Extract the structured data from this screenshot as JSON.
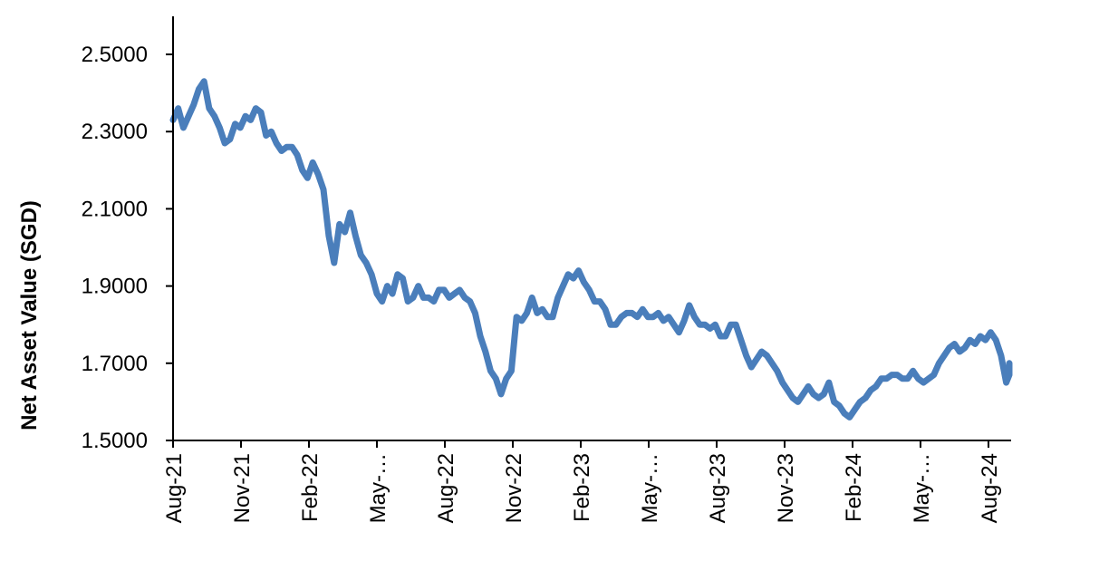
{
  "chart_data": {
    "type": "line",
    "title": "",
    "xlabel": "",
    "ylabel": "Net Asset Value (SGD)",
    "ylim": [
      1.5,
      2.6
    ],
    "y_ticks": [
      "1.5000",
      "1.7000",
      "1.9000",
      "2.1000",
      "2.3000",
      "2.5000"
    ],
    "x_ticks": [
      "Aug-21",
      "Nov-21",
      "Feb-22",
      "May-…",
      "Aug-22",
      "Nov-22",
      "Feb-23",
      "May-…",
      "Aug-23",
      "Nov-23",
      "Feb-24",
      "May-…",
      "Aug-24"
    ],
    "grid": false,
    "legend": "none",
    "line_color": "#4a7ebb",
    "series": [
      {
        "x": [
          "2021-08-01",
          "2021-08-08",
          "2021-08-15",
          "2021-08-22",
          "2021-08-29",
          "2021-09-05",
          "2021-09-12",
          "2021-09-19",
          "2021-09-26",
          "2021-10-03",
          "2021-10-10",
          "2021-10-17",
          "2021-10-24",
          "2021-10-31",
          "2021-11-07",
          "2021-11-14",
          "2021-11-21",
          "2021-11-28",
          "2021-12-05",
          "2021-12-12",
          "2021-12-19",
          "2021-12-26",
          "2022-01-02",
          "2022-01-09",
          "2022-01-16",
          "2022-01-23",
          "2022-01-30",
          "2022-02-06",
          "2022-02-13",
          "2022-02-20",
          "2022-02-27",
          "2022-03-06",
          "2022-03-13",
          "2022-03-20",
          "2022-03-27",
          "2022-04-03",
          "2022-04-10",
          "2022-04-17",
          "2022-04-24",
          "2022-05-01",
          "2022-05-08",
          "2022-05-15",
          "2022-05-22",
          "2022-05-29",
          "2022-06-05",
          "2022-06-12",
          "2022-06-19",
          "2022-06-26",
          "2022-07-03",
          "2022-07-10",
          "2022-07-17",
          "2022-07-24",
          "2022-07-31",
          "2022-08-07",
          "2022-08-14",
          "2022-08-21",
          "2022-08-28",
          "2022-09-04",
          "2022-09-11",
          "2022-09-18",
          "2022-09-25",
          "2022-10-02",
          "2022-10-09",
          "2022-10-16",
          "2022-10-23",
          "2022-10-30",
          "2022-11-06",
          "2022-11-13",
          "2022-11-20",
          "2022-11-27",
          "2022-12-04",
          "2022-12-11",
          "2022-12-18",
          "2022-12-25",
          "2023-01-01",
          "2023-01-08",
          "2023-01-15",
          "2023-01-22",
          "2023-01-29",
          "2023-02-05",
          "2023-02-12",
          "2023-02-19",
          "2023-02-26",
          "2023-03-05",
          "2023-03-12",
          "2023-03-19",
          "2023-03-26",
          "2023-04-02",
          "2023-04-09",
          "2023-04-16",
          "2023-04-23",
          "2023-04-30",
          "2023-05-07",
          "2023-05-14",
          "2023-05-21",
          "2023-05-28",
          "2023-06-04",
          "2023-06-11",
          "2023-06-18",
          "2023-06-25",
          "2023-07-02",
          "2023-07-09",
          "2023-07-16",
          "2023-07-23",
          "2023-07-30",
          "2023-08-06",
          "2023-08-13",
          "2023-08-20",
          "2023-08-27",
          "2023-09-03",
          "2023-09-10",
          "2023-09-17",
          "2023-09-24",
          "2023-10-01",
          "2023-10-08",
          "2023-10-15",
          "2023-10-22",
          "2023-10-29",
          "2023-11-05",
          "2023-11-12",
          "2023-11-19",
          "2023-11-26",
          "2023-12-03",
          "2023-12-10",
          "2023-12-17",
          "2023-12-24",
          "2023-12-31",
          "2024-01-07",
          "2024-01-14",
          "2024-01-21",
          "2024-01-28",
          "2024-02-04",
          "2024-02-11",
          "2024-02-18",
          "2024-02-25",
          "2024-03-03",
          "2024-03-10",
          "2024-03-17",
          "2024-03-24",
          "2024-03-31",
          "2024-04-07",
          "2024-04-14",
          "2024-04-21",
          "2024-04-28",
          "2024-05-05",
          "2024-05-12",
          "2024-05-19",
          "2024-05-26",
          "2024-06-02",
          "2024-06-09",
          "2024-06-16",
          "2024-06-23",
          "2024-06-30",
          "2024-07-07",
          "2024-07-14",
          "2024-07-21",
          "2024-07-28",
          "2024-08-04",
          "2024-08-11",
          "2024-08-18",
          "2024-08-25",
          "2024-09-01",
          "2024-09-08",
          "2024-09-15"
        ],
        "values": [
          2.33,
          2.36,
          2.31,
          2.34,
          2.37,
          2.41,
          2.43,
          2.36,
          2.34,
          2.31,
          2.27,
          2.28,
          2.32,
          2.31,
          2.34,
          2.33,
          2.36,
          2.35,
          2.29,
          2.3,
          2.27,
          2.25,
          2.26,
          2.26,
          2.24,
          2.2,
          2.18,
          2.22,
          2.19,
          2.15,
          2.03,
          1.96,
          2.06,
          2.04,
          2.09,
          2.03,
          1.98,
          1.96,
          1.93,
          1.88,
          1.86,
          1.9,
          1.88,
          1.93,
          1.92,
          1.86,
          1.87,
          1.9,
          1.87,
          1.87,
          1.86,
          1.89,
          1.89,
          1.87,
          1.88,
          1.89,
          1.87,
          1.86,
          1.83,
          1.77,
          1.73,
          1.68,
          1.66,
          1.62,
          1.66,
          1.68,
          1.82,
          1.81,
          1.83,
          1.87,
          1.83,
          1.84,
          1.82,
          1.82,
          1.87,
          1.9,
          1.93,
          1.92,
          1.94,
          1.91,
          1.89,
          1.86,
          1.86,
          1.84,
          1.8,
          1.8,
          1.82,
          1.83,
          1.83,
          1.82,
          1.84,
          1.82,
          1.82,
          1.83,
          1.81,
          1.82,
          1.8,
          1.78,
          1.81,
          1.85,
          1.82,
          1.8,
          1.8,
          1.79,
          1.8,
          1.77,
          1.77,
          1.8,
          1.8,
          1.76,
          1.72,
          1.69,
          1.71,
          1.73,
          1.72,
          1.7,
          1.68,
          1.65,
          1.63,
          1.61,
          1.6,
          1.62,
          1.64,
          1.62,
          1.61,
          1.62,
          1.65,
          1.6,
          1.59,
          1.57,
          1.56,
          1.58,
          1.6,
          1.61,
          1.63,
          1.64,
          1.66,
          1.66,
          1.67,
          1.67,
          1.66,
          1.66,
          1.68,
          1.66,
          1.65,
          1.66,
          1.67,
          1.7,
          1.72,
          1.74,
          1.75,
          1.73,
          1.74,
          1.76,
          1.75,
          1.77,
          1.76,
          1.78,
          1.76,
          1.72,
          1.65,
          1.67,
          1.69,
          1.7
        ]
      }
    ]
  }
}
